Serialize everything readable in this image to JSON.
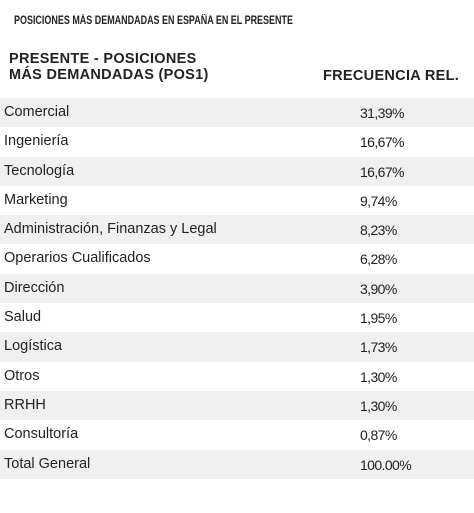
{
  "title": "POSICIONES MÁS DEMANDADAS EN ESPAÑA EN EL PRESENTE",
  "table": {
    "col_left_line1": "PRESENTE - POSICIONES",
    "col_left_line2": "MÁS DEMANDADAS  (POS1)",
    "col_right": "FRECUENCIA REL.",
    "rows": [
      {
        "label": "Comercial",
        "value": "31,39%"
      },
      {
        "label": "Ingeniería",
        "value": "16,67%"
      },
      {
        "label": "Tecnología",
        "value": "16,67%"
      },
      {
        "label": "Marketing",
        "value": "9,74%"
      },
      {
        "label": "Administración, Finanzas y Legal",
        "value": "8,23%"
      },
      {
        "label": "Operarios Cualificados",
        "value": "6,28%"
      },
      {
        "label": "Dirección",
        "value": "3,90%"
      },
      {
        "label": "Salud",
        "value": "1,95%"
      },
      {
        "label": "Logística",
        "value": "1,73%"
      },
      {
        "label": "Otros",
        "value": "1,30%"
      },
      {
        "label": "RRHH",
        "value": "1,30%"
      },
      {
        "label": "Consultoría",
        "value": "0,87%"
      },
      {
        "label": "Total General",
        "value": "100.00%"
      }
    ]
  }
}
